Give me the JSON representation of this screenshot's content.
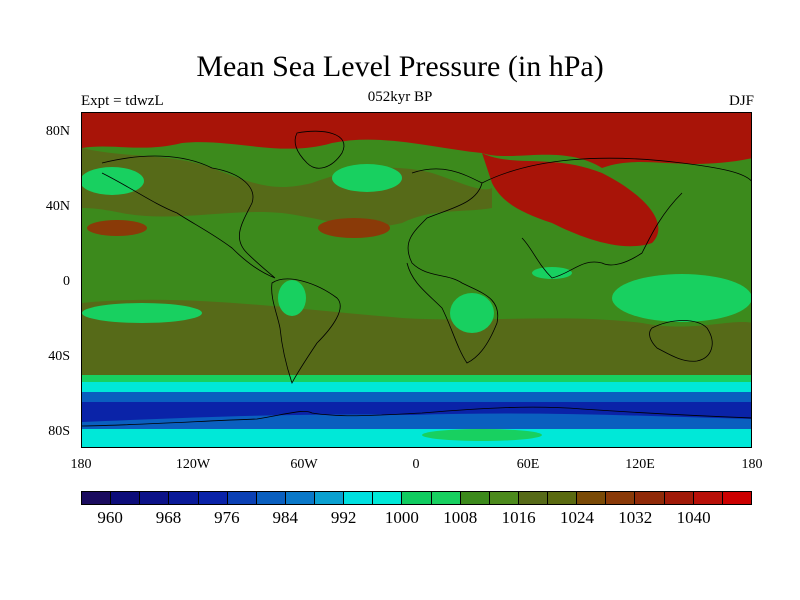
{
  "title": "Mean Sea Level Pressure (in hPa)",
  "left_string": "Expt = tdwzL",
  "center_string": "052kyr BP",
  "right_string": "DJF",
  "y_ticks": [
    "80N",
    "40N",
    "0",
    "40S",
    "80S"
  ],
  "x_ticks": [
    "180",
    "120W",
    "60W",
    "0",
    "60E",
    "120E",
    "180"
  ],
  "colorbar_labels": [
    "960",
    "968",
    "976",
    "984",
    "992",
    "1000",
    "1008",
    "1016",
    "1024",
    "1032",
    "1040"
  ],
  "colorbar_colors": [
    "#1a0b5e",
    "#0d0d7a",
    "#0c1288",
    "#0a1a98",
    "#0a23a8",
    "#0b40b4",
    "#0a5fbf",
    "#0a78c8",
    "#0aa0d0",
    "#00e0e0",
    "#00e8d8",
    "#10cc60",
    "#18d060",
    "#3c8a1c",
    "#4c8a1c",
    "#566a18",
    "#5a6a10",
    "#7a4a06",
    "#8a3a08",
    "#902a08",
    "#a01a08",
    "#b81008",
    "#cc0000"
  ],
  "map_colors": {
    "polar_high": "#a81408",
    "high": "#8a3a08",
    "mid_high": "#566a18",
    "mid": "#3c8a1c",
    "low": "#18d060",
    "very_low": "#00e8d8",
    "deep_low": "#0a5fbf",
    "deepest": "#0a23a8"
  }
}
